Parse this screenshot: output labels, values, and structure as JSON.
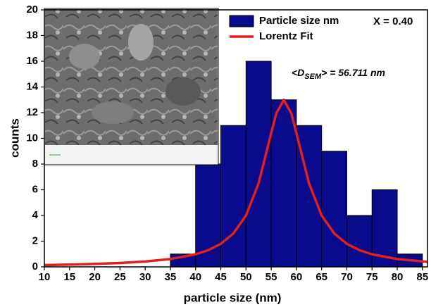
{
  "chart_data": {
    "type": "histogram",
    "x_label": "particle size (nm)",
    "y_label": "counts",
    "xlim": [
      10,
      86
    ],
    "ylim": [
      0,
      20
    ],
    "xticks": [
      10,
      15,
      20,
      25,
      30,
      35,
      40,
      45,
      50,
      55,
      60,
      65,
      70,
      75,
      80,
      85
    ],
    "yticks": [
      0,
      2,
      4,
      6,
      8,
      10,
      12,
      14,
      16,
      18,
      20
    ],
    "legend": "upper right",
    "annotations": [
      "X = 0.40"
    ],
    "mean_label": {
      "open": "<D",
      "sub": "SEM",
      "close": "> = 56.711 nm"
    },
    "series": [
      {
        "type": "histogram",
        "name": "Particle size nm",
        "color": "#0a0a8c",
        "bins": [
          35,
          40,
          45,
          50,
          55,
          60,
          65,
          70,
          75,
          80,
          85
        ],
        "values": [
          1,
          8,
          11,
          16,
          13,
          11,
          9,
          4,
          6,
          1
        ]
      },
      {
        "type": "line",
        "name": "Lorentz Fit",
        "color": "#e0201c",
        "x": [
          10,
          15,
          20,
          25,
          30,
          35,
          40,
          42.5,
          45,
          47.5,
          50,
          52.5,
          55,
          56,
          57.5,
          59,
          60,
          62.5,
          65,
          67.5,
          70,
          72.5,
          75,
          80,
          86
        ],
        "values": [
          0.14,
          0.18,
          0.23,
          0.3,
          0.42,
          0.61,
          0.98,
          1.3,
          1.79,
          2.6,
          4.0,
          6.5,
          10.4,
          11.93,
          13,
          11.93,
          10.4,
          6.5,
          4.0,
          2.6,
          1.79,
          1.3,
          0.98,
          0.61,
          0.39
        ]
      }
    ]
  }
}
